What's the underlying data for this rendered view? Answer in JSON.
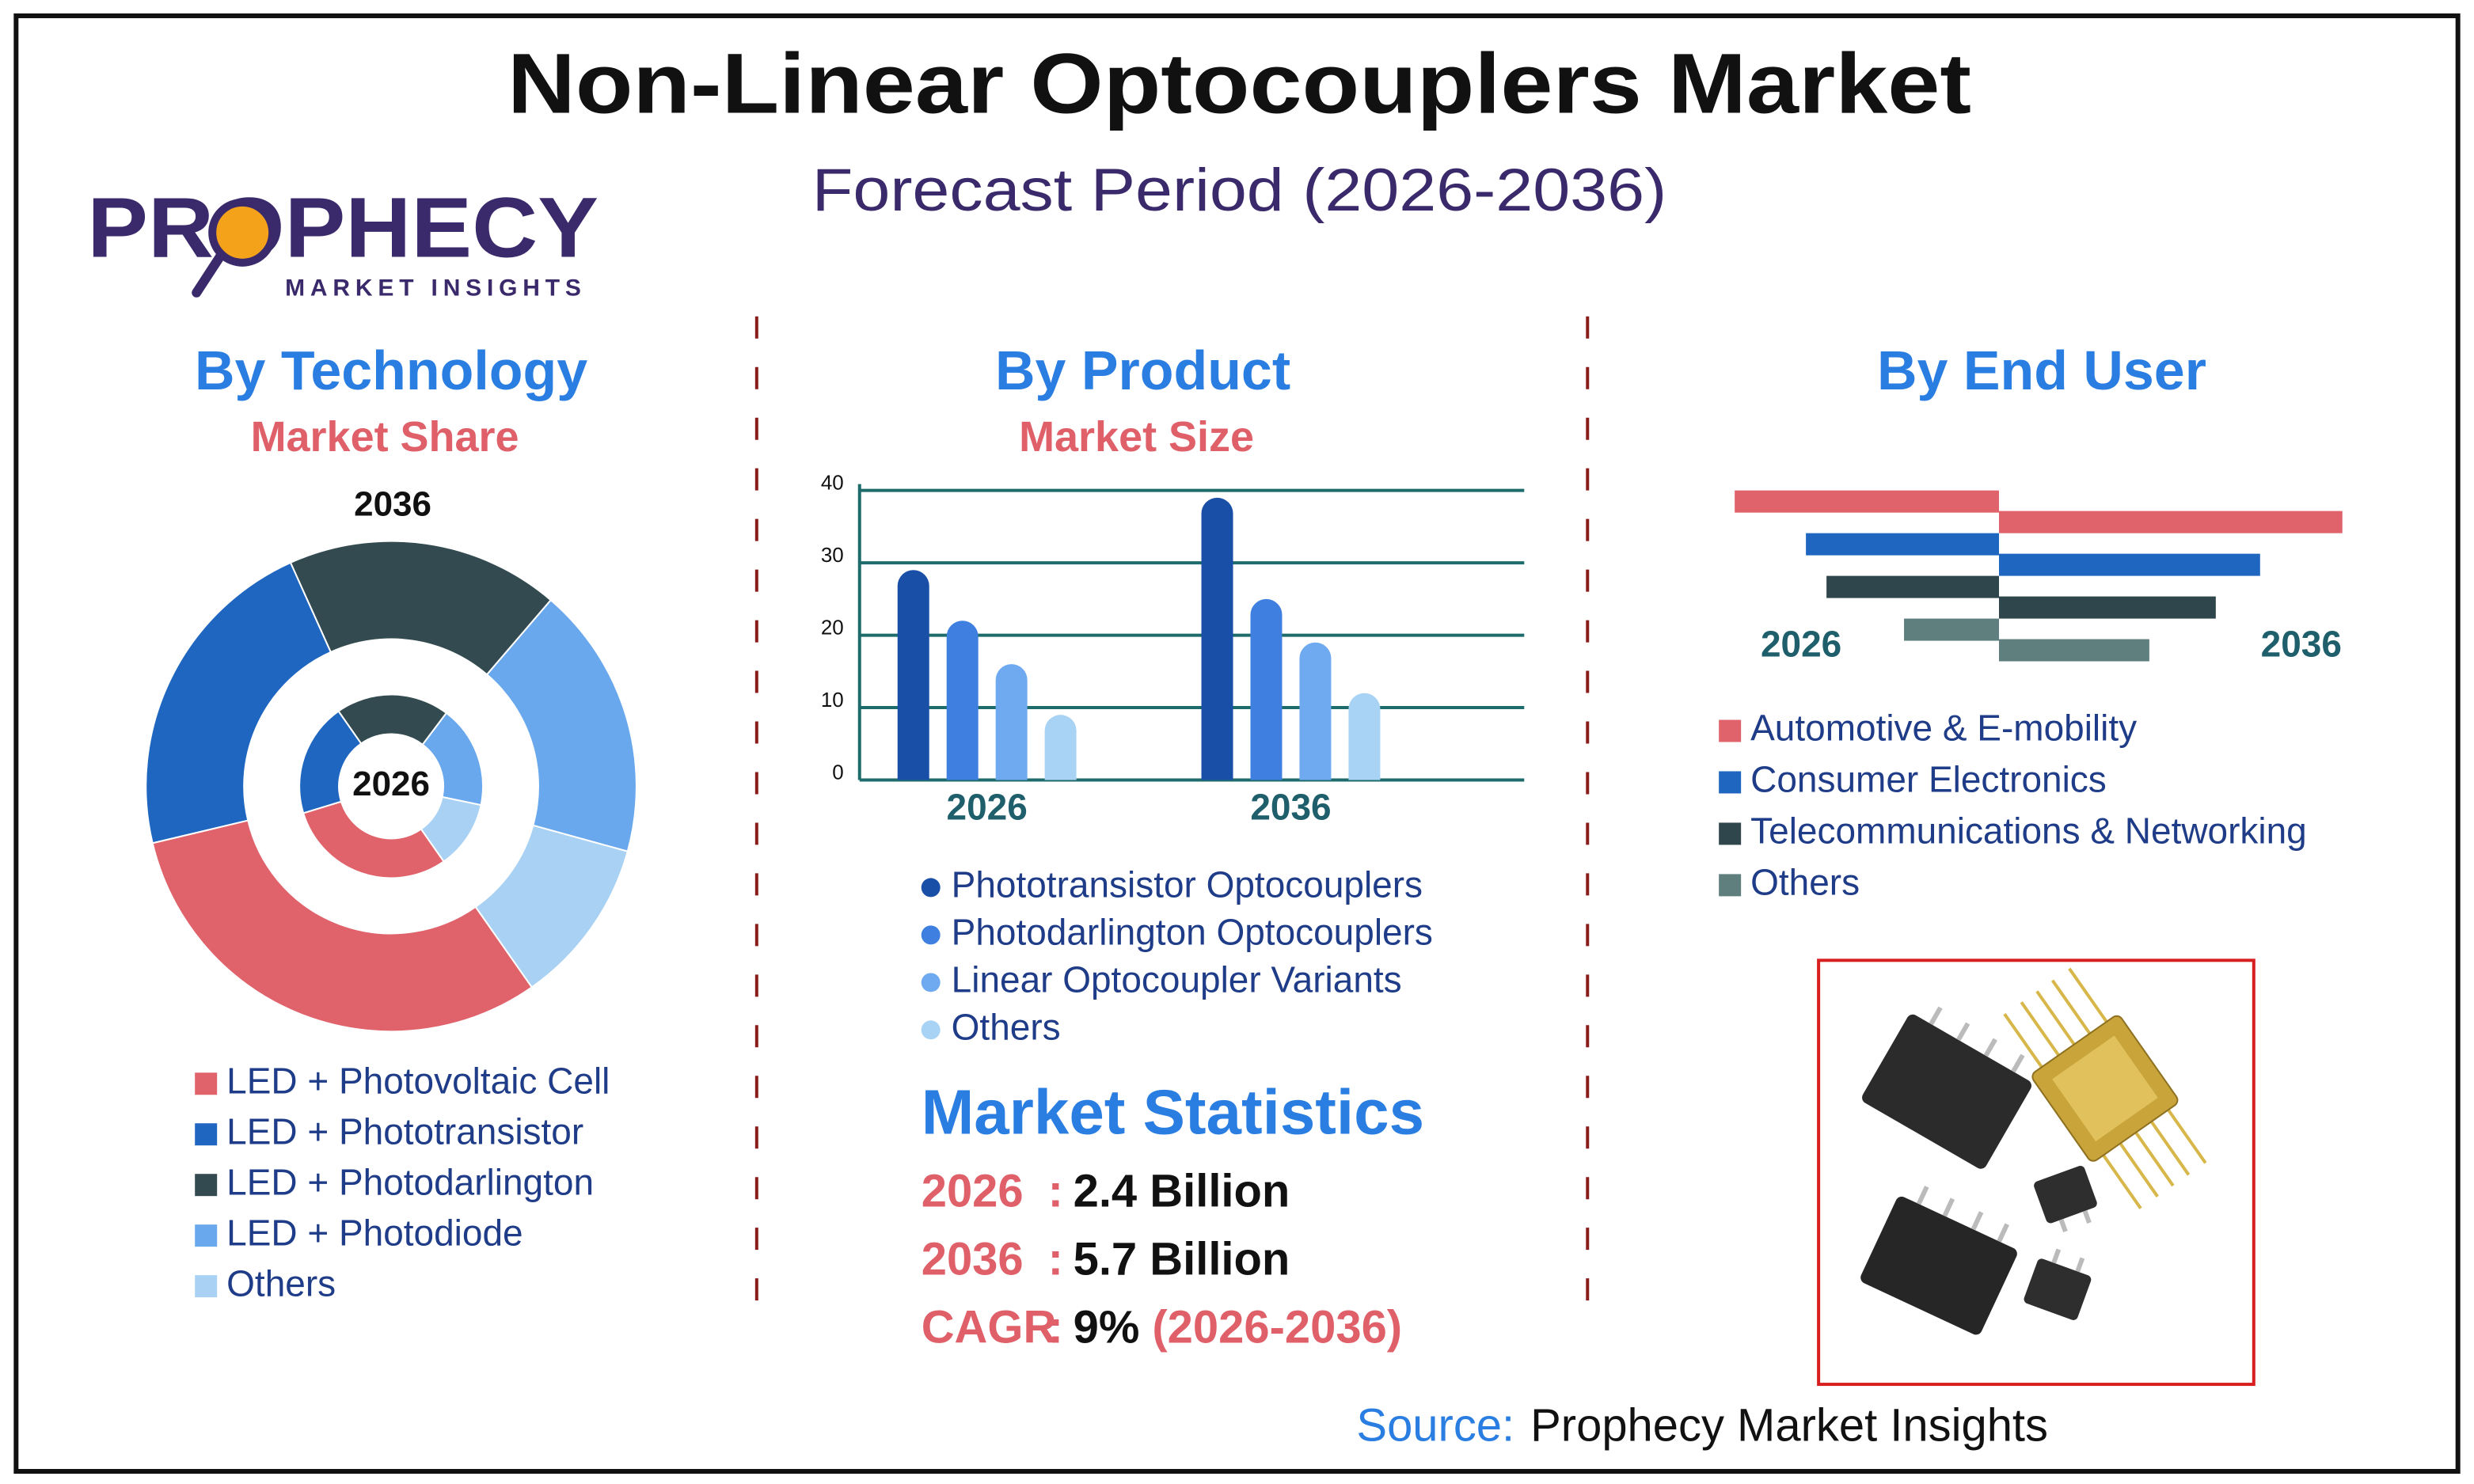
{
  "header": {
    "title": "Non-Linear Optocouplers Market",
    "subtitle": "Forecast Period (2026-2036)"
  },
  "logo": {
    "name": "PROPHECY",
    "tagline": "MARKET INSIGHTS"
  },
  "chart_data": [
    {
      "type": "donut",
      "title": "By Technology",
      "subtitle": "Market Share",
      "categories": [
        "LED + Photovoltaic Cell",
        "LED + Phototransistor",
        "LED + Photodarlington",
        "LED + Photodiode",
        "Others"
      ],
      "colors": [
        "#e0626b",
        "#1f66c1",
        "#334b50",
        "#6aa8ee",
        "#a8d1f3"
      ],
      "series": [
        {
          "name": "2026",
          "values": [
            30,
            20,
            20,
            18,
            12
          ]
        },
        {
          "name": "2036",
          "values": [
            31,
            22,
            18,
            18,
            11
          ]
        }
      ]
    },
    {
      "type": "bar",
      "title": "By Product",
      "subtitle": "Market Size",
      "categories": [
        "2026",
        "2036"
      ],
      "series": [
        {
          "name": "Phototransistor Optocouplers",
          "color": "#1a4fa8",
          "values": [
            29,
            39
          ]
        },
        {
          "name": "Photodarlington Optocouplers",
          "color": "#3f7fe0",
          "values": [
            22,
            25
          ]
        },
        {
          "name": "Linear Optocoupler Variants",
          "color": "#6faaf0",
          "values": [
            16,
            19
          ]
        },
        {
          "name": "Others",
          "color": "#a8d3f5",
          "values": [
            9,
            12
          ]
        }
      ],
      "ylim": [
        0,
        40
      ],
      "yticks": [
        0,
        10,
        20,
        30,
        40
      ],
      "grid": true
    },
    {
      "type": "butterfly",
      "title": "By End User",
      "categories": [
        "Automotive & E-mobility",
        "Consumer Electronics",
        "Telecommunications & Networking",
        "Others"
      ],
      "colors": [
        "#e0626b",
        "#1f66c1",
        "#2f474c",
        "#5f7e7e"
      ],
      "series": [
        {
          "name": "2026",
          "values": [
            167,
            122,
            109,
            60
          ]
        },
        {
          "name": "2036",
          "values": [
            217,
            165,
            137,
            95
          ]
        }
      ]
    }
  ],
  "statistics": {
    "title": "Market Statistics",
    "separator": ":",
    "rows": [
      {
        "label": "2026",
        "value": "2.4 Billion"
      },
      {
        "label": "2036",
        "value": "5.7 Billion"
      },
      {
        "label": "CAGR",
        "value": "9%",
        "note": "(2026-2036)"
      }
    ]
  },
  "source": {
    "label": "Source:",
    "text": "Prophecy Market Insights"
  }
}
